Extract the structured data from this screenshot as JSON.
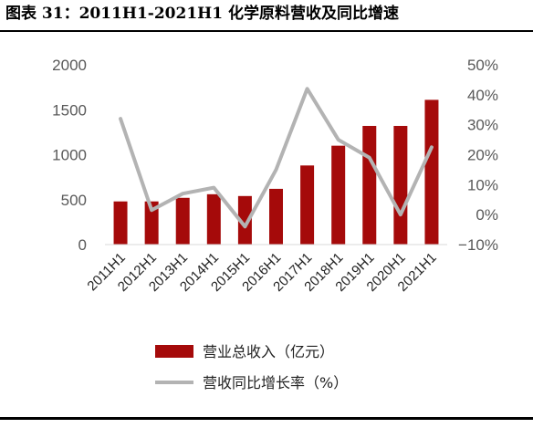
{
  "figure": {
    "caption": "图表 31：2011H1-2021H1 化学原料营收及同比增速"
  },
  "chart_data": {
    "type": "bar+line",
    "categories": [
      "2011H1",
      "2012H1",
      "2013H1",
      "2014H1",
      "2015H1",
      "2016H1",
      "2017H1",
      "2018H1",
      "2019H1",
      "2020H1",
      "2021H1"
    ],
    "series": [
      {
        "name": "营业总收入（亿元）",
        "type": "bar",
        "axis": "left",
        "color": "#a50a0a",
        "values": [
          480,
          480,
          520,
          560,
          540,
          620,
          880,
          1100,
          1320,
          1320,
          1610
        ]
      },
      {
        "name": "营收同比增长率（%）",
        "type": "line",
        "axis": "right",
        "color": "#b3b3b3",
        "values": [
          32,
          1.5,
          7,
          9,
          -4,
          15,
          42,
          25,
          19,
          0,
          22.5
        ]
      }
    ],
    "y_left": {
      "lim": [
        0,
        2000
      ],
      "ticks": [
        0,
        500,
        1000,
        1500,
        2000
      ],
      "tick_labels": [
        "0",
        "500",
        "1000",
        "1500",
        "2000"
      ]
    },
    "y_right": {
      "lim": [
        -10,
        50
      ],
      "ticks": [
        -10,
        0,
        10,
        20,
        30,
        40,
        50
      ],
      "tick_labels": [
        "−10%",
        "0%",
        "10%",
        "20%",
        "30%",
        "40%",
        "50%"
      ]
    },
    "grid": false,
    "legend": "bottom"
  }
}
